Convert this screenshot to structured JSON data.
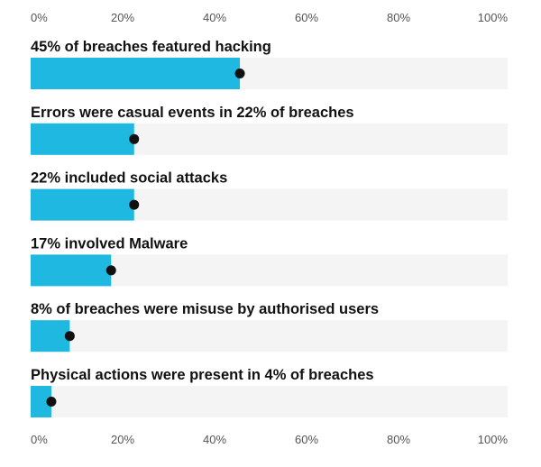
{
  "chart_data": {
    "type": "bar",
    "orientation": "horizontal",
    "xlim": [
      0,
      100
    ],
    "ticks": [
      "0%",
      "20%",
      "40%",
      "60%",
      "80%",
      "100%"
    ],
    "tick_values": [
      0,
      20,
      40,
      60,
      80,
      100
    ],
    "axis_labels_position": "top and bottom",
    "grid": false,
    "legend": "none",
    "bars": [
      {
        "label": "45% of breaches featured hacking",
        "value": 45
      },
      {
        "label": "Errors were casual events in 22% of breaches",
        "value": 22
      },
      {
        "label": "22% included social attacks",
        "value": 22
      },
      {
        "label": "17% involved Malware",
        "value": 17
      },
      {
        "label": "8% of breaches were misuse by authorised users",
        "value": 8
      },
      {
        "label": "Physical actions were present in 4% of breaches",
        "value": 4
      }
    ],
    "colors": {
      "bar_fill": "#1eb8e0",
      "track": "#f4f4f4",
      "marker": "#111111",
      "label_text": "#111111",
      "tick_text": "#555555"
    }
  }
}
